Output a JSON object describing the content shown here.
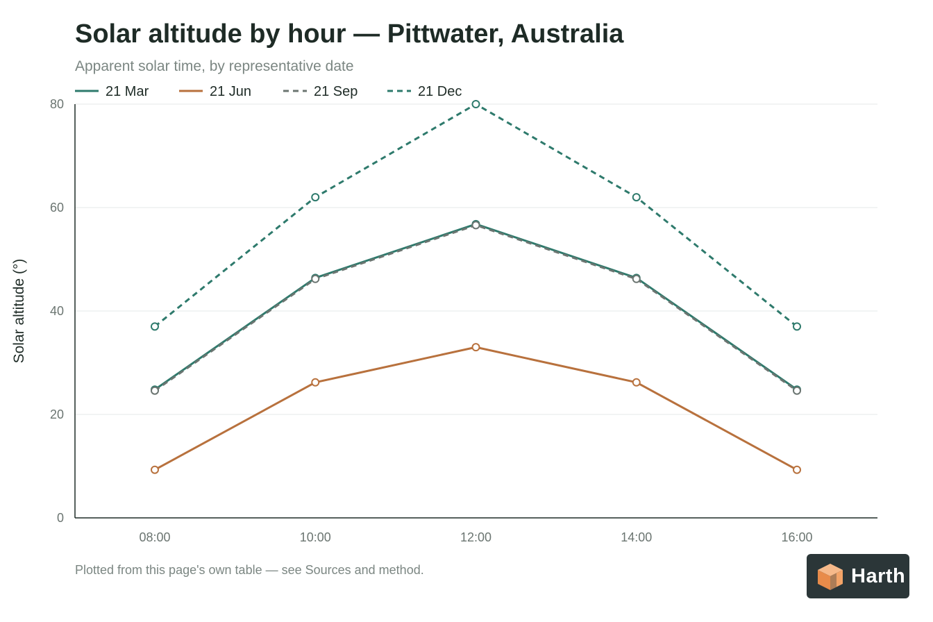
{
  "header": {
    "title": "Solar altitude by hour — Pittwater, Australia",
    "subtitle": "Apparent solar time, by representative date"
  },
  "footer": {
    "note": "Plotted from this page's own table — see Sources and method.",
    "brand_name": "Harth",
    "brand_icon": "cube-logo-icon"
  },
  "chart_data": {
    "type": "line",
    "title": "Solar altitude by hour — Pittwater, Australia",
    "subtitle": "Apparent solar time, by representative date",
    "xlabel": "",
    "ylabel": "Solar altitude (°)",
    "categories": [
      "08:00",
      "10:00",
      "12:00",
      "14:00",
      "16:00"
    ],
    "ylim": [
      0,
      80
    ],
    "yticks": [
      0,
      20,
      40,
      60,
      80
    ],
    "grid": "horizontal",
    "legend": "top-left",
    "series": [
      {
        "name": "21 Mar",
        "values": [
          24.8,
          46.4,
          56.8,
          46.4,
          24.8
        ],
        "color": "#2e7a6c",
        "dashed": false
      },
      {
        "name": "21 Jun",
        "values": [
          9.3,
          26.2,
          33.0,
          26.2,
          9.3
        ],
        "color": "#b8713d",
        "dashed": false
      },
      {
        "name": "21 Sep",
        "values": [
          24.6,
          46.2,
          56.6,
          46.2,
          24.6
        ],
        "color": "#6b7571",
        "dashed": true
      },
      {
        "name": "21 Dec",
        "values": [
          37.0,
          62.0,
          80.0,
          62.0,
          37.0
        ],
        "color": "#2e7a6c",
        "dashed": true
      }
    ]
  }
}
